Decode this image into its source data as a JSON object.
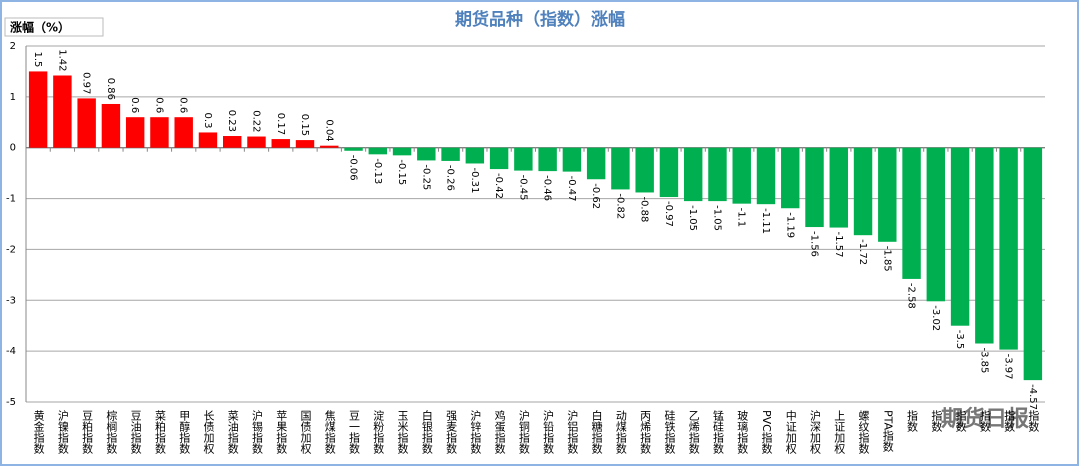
{
  "chart_data": {
    "type": "bar",
    "title": "期货品种（指数）涨幅",
    "y_label": "涨幅（%）",
    "watermark": "期货日报",
    "categories": [
      "黄金指数",
      "沪镍指数",
      "豆粕指数",
      "棕榈指数",
      "豆油指数",
      "菜粕指数",
      "甲醇指数",
      "长债加权",
      "菜油指数",
      "沪锡指数",
      "苹果指数",
      "国债加权",
      "焦煤指数",
      "豆一指数",
      "淀粉指数",
      "玉米指数",
      "白银指数",
      "强麦指数",
      "沪锌指数",
      "鸡蛋指数",
      "沪铜指数",
      "沪铅指数",
      "沪铝指数",
      "白糖指数",
      "动煤指数",
      "丙烯指数",
      "硅铁指数",
      "乙烯指数",
      "锰硅指数",
      "玻璃指数",
      "PVC指数",
      "中证加权",
      "沪深加权",
      "上证加权",
      "螺纹指数",
      "PTA指数",
      "指数",
      "指数",
      "指数",
      "指数",
      "指数",
      "指数"
    ],
    "values": [
      1.5,
      1.42,
      0.97,
      0.86,
      0.6,
      0.6,
      0.6,
      0.3,
      0.23,
      0.22,
      0.17,
      0.15,
      0.04,
      -0.06,
      -0.13,
      -0.15,
      -0.25,
      -0.26,
      -0.31,
      -0.42,
      -0.45,
      -0.46,
      -0.47,
      -0.62,
      -0.82,
      -0.88,
      -0.97,
      -1.05,
      -1.05,
      -1.1,
      -1.11,
      -1.19,
      -1.56,
      -1.57,
      -1.72,
      -1.85,
      -2.58,
      -3.02,
      -3.5,
      -3.85,
      -3.97,
      -4.57
    ],
    "color_positive": "#ff0000",
    "color_negative": "#00b050",
    "ylim": [
      -5,
      2
    ],
    "yticks": [
      -5,
      -4,
      -3,
      -2,
      -1,
      0,
      1,
      2
    ],
    "grid": true
  }
}
